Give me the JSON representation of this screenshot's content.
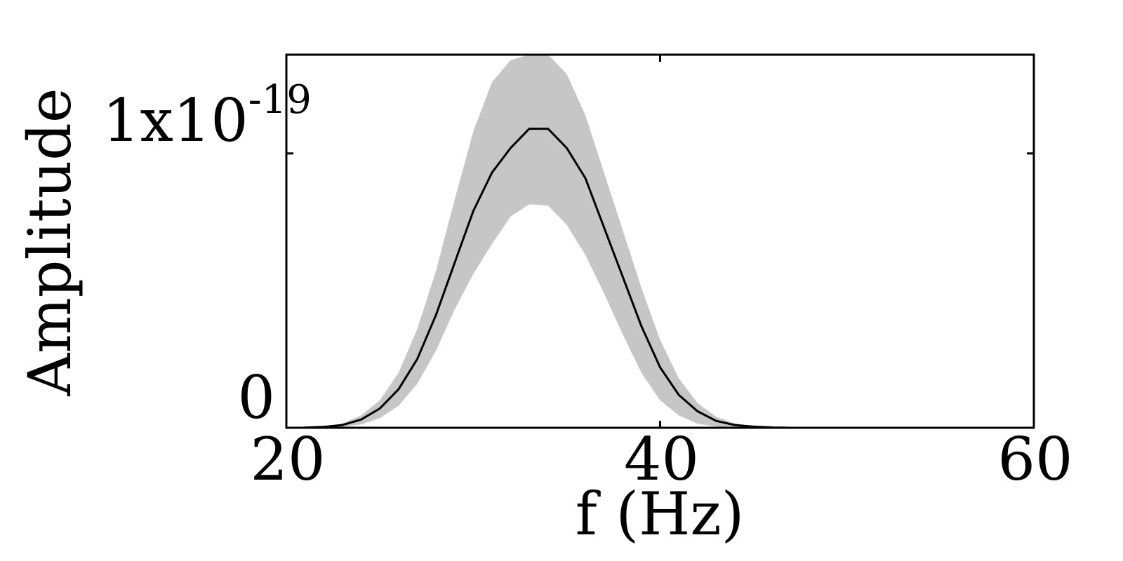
{
  "chart_data": {
    "type": "line",
    "xlabel": "f (Hz)",
    "ylabel": "Amplitude",
    "xlim": [
      20,
      60
    ],
    "ylim": [
      0,
      1.36e-19
    ],
    "x_ticks": [
      {
        "value": 20,
        "label": "20"
      },
      {
        "value": 40,
        "label": "40"
      },
      {
        "value": 60,
        "label": "60"
      }
    ],
    "y_ticks": [
      {
        "value": 0,
        "label": "0",
        "superscript": ""
      },
      {
        "value": 1e-19,
        "label": "1x10",
        "superscript": "-19"
      }
    ],
    "grid": false,
    "x": [
      20,
      20.8,
      21,
      22,
      23,
      24,
      25,
      26,
      27,
      28,
      29,
      30,
      31,
      32,
      33,
      34,
      35,
      36,
      37,
      38,
      39,
      40,
      41,
      42,
      43,
      44,
      45,
      46,
      47,
      48,
      49,
      50
    ],
    "series": [
      {
        "role": "median",
        "color": "#000000",
        "values": [
          0,
          0,
          5e-23,
          3e-22,
          1e-21,
          3e-21,
          7e-21,
          1.4e-20,
          2.5e-20,
          4.1e-20,
          6e-20,
          7.9e-20,
          9.3e-20,
          1.02e-19,
          1.09e-19,
          1.09e-19,
          1.02e-19,
          9.1e-20,
          7.3e-20,
          5.5e-20,
          3.7e-20,
          2.2e-20,
          1.2e-20,
          6e-21,
          2.5e-21,
          1e-21,
          4e-22,
          1e-22,
          0,
          0,
          0,
          0
        ]
      },
      {
        "role": "band-upper",
        "color": "#c6c6c6",
        "values": [
          0,
          0,
          1e-22,
          5e-22,
          1.6e-21,
          4.5e-21,
          1e-20,
          2e-20,
          3.6e-20,
          5.7e-20,
          8.3e-20,
          1.08e-19,
          1.26e-19,
          1.34e-19,
          1.36e-19,
          1.36e-19,
          1.29e-19,
          1.14e-19,
          9.3e-20,
          7.2e-20,
          5.1e-20,
          3.2e-20,
          1.8e-20,
          9e-21,
          4e-21,
          1.6e-21,
          5e-22,
          1e-22,
          0,
          0,
          0,
          0
        ]
      },
      {
        "role": "band-lower",
        "color": "#c6c6c6",
        "values": [
          0,
          0,
          0,
          0,
          3e-22,
          1.2e-21,
          3.5e-21,
          8e-21,
          1.6e-20,
          2.8e-20,
          4.3e-20,
          5.6e-20,
          6.7e-20,
          7.7e-20,
          8.15e-20,
          8.1e-20,
          7.4e-20,
          6.3e-20,
          4.9e-20,
          3.4e-20,
          2e-20,
          1e-20,
          4.5e-21,
          1.5e-21,
          4e-22,
          1e-22,
          0,
          0,
          0,
          0,
          0,
          0
        ]
      }
    ]
  }
}
